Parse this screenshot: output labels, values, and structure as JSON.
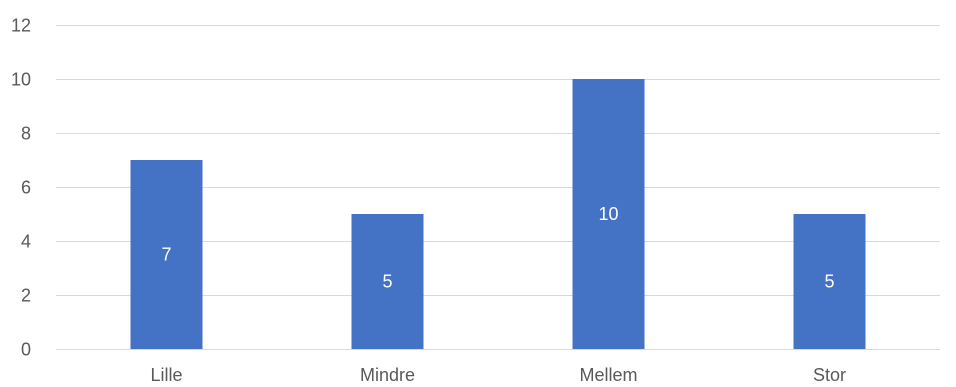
{
  "chart_data": {
    "type": "bar",
    "title": "",
    "xlabel": "",
    "ylabel": "",
    "categories": [
      "Lille",
      "Mindre",
      "Mellem",
      "Stor"
    ],
    "values": [
      7,
      5,
      10,
      5
    ],
    "data_labels": [
      "7",
      "5",
      "10",
      "5"
    ],
    "ylim": [
      0,
      12
    ],
    "yticks": [
      0,
      2,
      4,
      6,
      8,
      10,
      12
    ],
    "grid": true,
    "legend": "none",
    "bar_color": "#4472c4",
    "label_color": "#ffffff"
  }
}
